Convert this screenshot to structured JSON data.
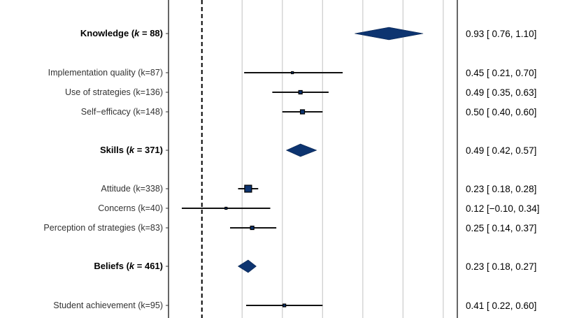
{
  "chart_data": {
    "type": "forest",
    "xlim": [
      -0.166,
      1.27
    ],
    "reference_line": 0,
    "gridlines": [
      0.2,
      0.4,
      0.6,
      0.8,
      1.0,
      1.2
    ],
    "marker_color": "#0d3470",
    "rows": [
      {
        "label": "Knowledge",
        "k": "88",
        "summary": true,
        "est": 0.93,
        "lo": 0.76,
        "hi": 1.1,
        "text": "0.93 [ 0.76, 1.10]"
      },
      {
        "label": "Implementation quality (k=87)",
        "summary": false,
        "est": 0.45,
        "lo": 0.21,
        "hi": 0.7,
        "weight": 3,
        "text": "0.45 [ 0.21, 0.70]"
      },
      {
        "label": "Use of strategies (k=136)",
        "summary": false,
        "est": 0.49,
        "lo": 0.35,
        "hi": 0.63,
        "weight": 5,
        "text": "0.49 [ 0.35, 0.63]"
      },
      {
        "label": "Self−efficacy (k=148)",
        "summary": false,
        "est": 0.5,
        "lo": 0.4,
        "hi": 0.6,
        "weight": 6,
        "text": "0.50 [ 0.40, 0.60]"
      },
      {
        "label": "Skills",
        "k": "371",
        "summary": true,
        "est": 0.49,
        "lo": 0.42,
        "hi": 0.57,
        "text": "0.49 [ 0.42, 0.57]"
      },
      {
        "label": "Attitude (k=338)",
        "summary": false,
        "est": 0.23,
        "lo": 0.18,
        "hi": 0.28,
        "weight": 10,
        "text": "0.23 [ 0.18, 0.28]"
      },
      {
        "label": "Concerns (k=40)",
        "summary": false,
        "est": 0.12,
        "lo": -0.1,
        "hi": 0.34,
        "weight": 3,
        "text": "0.12 [−0.10, 0.34]"
      },
      {
        "label": "Perception of strategies (k=83)",
        "summary": false,
        "est": 0.25,
        "lo": 0.14,
        "hi": 0.37,
        "weight": 5,
        "text": "0.25 [ 0.14, 0.37]"
      },
      {
        "label": "Beliefs",
        "k": "461",
        "summary": true,
        "est": 0.23,
        "lo": 0.18,
        "hi": 0.27,
        "text": "0.23 [ 0.18, 0.27]"
      },
      {
        "label": "Student achievement (k=95)",
        "summary": false,
        "est": 0.41,
        "lo": 0.22,
        "hi": 0.6,
        "weight": 4,
        "text": "0.41 [ 0.22, 0.60]"
      }
    ]
  }
}
